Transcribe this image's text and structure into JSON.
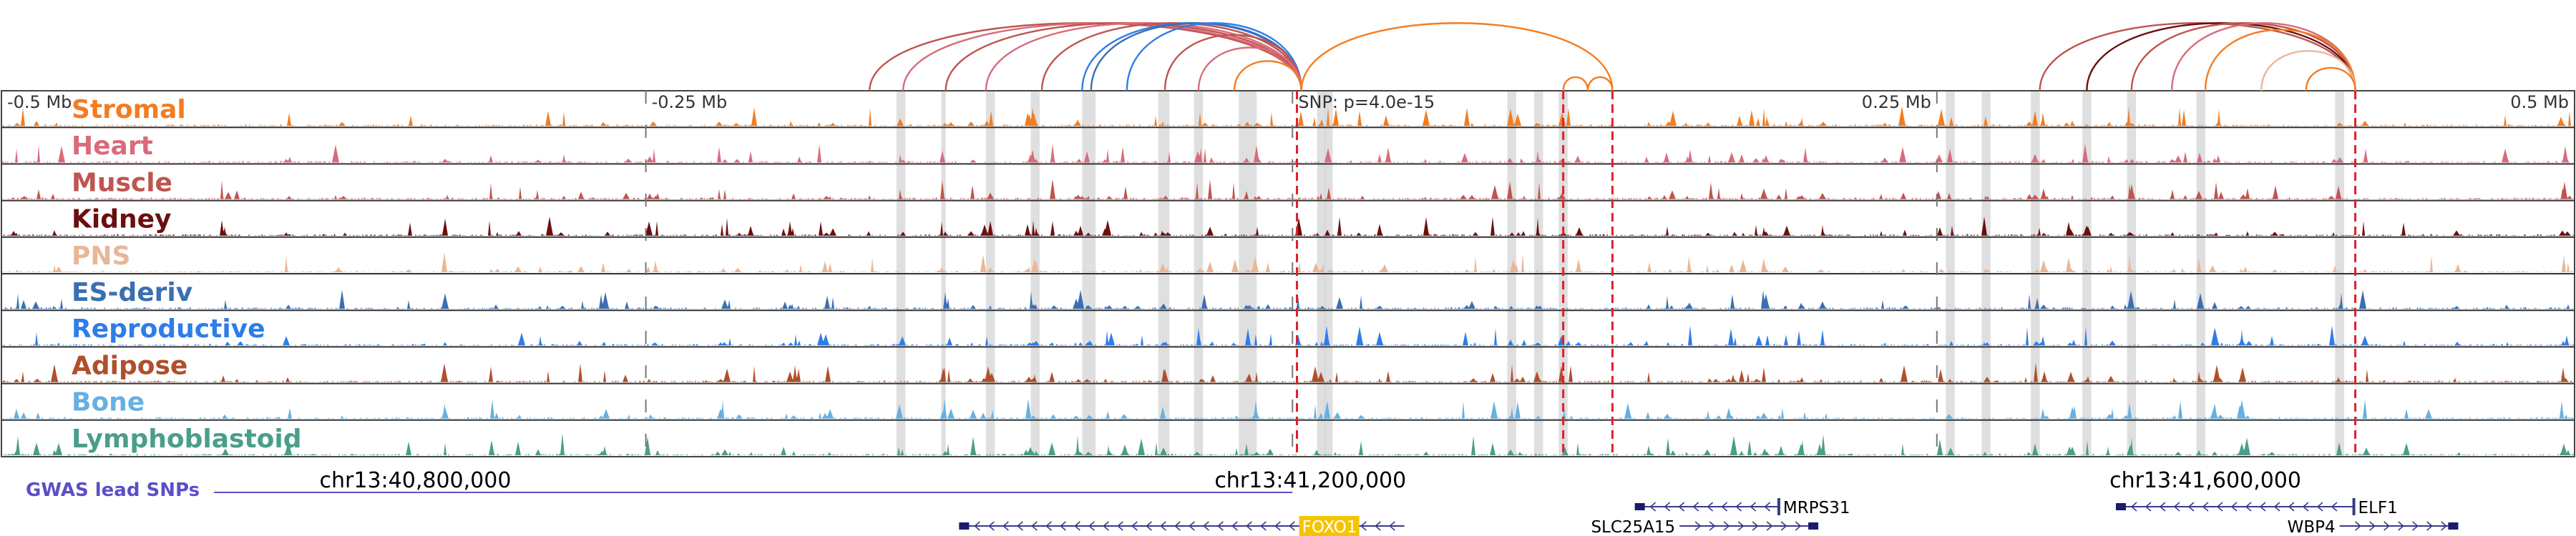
{
  "chart_data": {
    "type": "area",
    "title": "",
    "region": {
      "chrom": "chr13",
      "start": 40615000,
      "end": 41765000,
      "x_ticks": [
        {
          "pos": 40615000,
          "label": "-0.5 Mb"
        },
        {
          "pos": 40903000,
          "label": "-0.25 Mb"
        },
        {
          "pos": 41192000,
          "label": "SNP: p=4.0e-15"
        },
        {
          "pos": 41480000,
          "label": "0.25 Mb"
        },
        {
          "pos": 41765000,
          "label": "0.5 Mb"
        }
      ],
      "coord_labels": [
        {
          "pos": 40800000,
          "label": "chr13:40,800,000"
        },
        {
          "pos": 41200000,
          "label": "chr13:41,200,000"
        },
        {
          "pos": 41600000,
          "label": "chr13:41,600,000"
        }
      ]
    },
    "lead_snp": {
      "pos": 41192000,
      "label": "SNP: p=4.0e-15"
    },
    "tracks": [
      {
        "name": "Stromal",
        "color": "#f47c20"
      },
      {
        "name": "Heart",
        "color": "#d96b7b"
      },
      {
        "name": "Muscle",
        "color": "#c0544f"
      },
      {
        "name": "Kidney",
        "color": "#6a0f0f"
      },
      {
        "name": "PNS",
        "color": "#e8b797"
      },
      {
        "name": "ES-deriv",
        "color": "#3b6fb0"
      },
      {
        "name": "Reproductive",
        "color": "#2e7de9"
      },
      {
        "name": "Adipose",
        "color": "#b04f2c"
      },
      {
        "name": "Bone",
        "color": "#66b0e2"
      },
      {
        "name": "Lymphoblastoid",
        "color": "#4a9e8a"
      }
    ],
    "highlight_regions": [
      [
        41015000,
        41019000
      ],
      [
        41035000,
        41037000
      ],
      [
        41055000,
        41059000
      ],
      [
        41075000,
        41079000
      ],
      [
        41098000,
        41104000
      ],
      [
        41132000,
        41137000
      ],
      [
        41148000,
        41152000
      ],
      [
        41168000,
        41176000
      ],
      [
        41203000,
        41207000
      ],
      [
        41206000,
        41210000
      ],
      [
        41288000,
        41292000
      ],
      [
        41300000,
        41304000
      ],
      [
        41311000,
        41315000
      ],
      [
        41484000,
        41488000
      ],
      [
        41500000,
        41504000
      ],
      [
        41522000,
        41526000
      ],
      [
        41545000,
        41549000
      ],
      [
        41565000,
        41569000
      ],
      [
        41596000,
        41600000
      ],
      [
        41658000,
        41662000
      ]
    ],
    "dashed_markers": [
      41194000,
      41313000,
      41335000,
      41667000
    ],
    "loops": [
      {
        "a": 41003000,
        "b": 41196000,
        "color": "#c0544f"
      },
      {
        "a": 41018000,
        "b": 41196000,
        "color": "#d96b7b"
      },
      {
        "a": 41037000,
        "b": 41196000,
        "color": "#c0544f"
      },
      {
        "a": 41055000,
        "b": 41196000,
        "color": "#d96b7b"
      },
      {
        "a": 41080000,
        "b": 41196000,
        "color": "#c0544f"
      },
      {
        "a": 41098000,
        "b": 41196000,
        "color": "#2e7de9"
      },
      {
        "a": 41102000,
        "b": 41196000,
        "color": "#3b6fb0"
      },
      {
        "a": 41118000,
        "b": 41196000,
        "color": "#2e7de9"
      },
      {
        "a": 41135000,
        "b": 41196000,
        "color": "#c0544f"
      },
      {
        "a": 41150000,
        "b": 41196000,
        "color": "#d96b7b"
      },
      {
        "a": 41166000,
        "b": 41196000,
        "color": "#f47c20"
      },
      {
        "a": 41196000,
        "b": 41335000,
        "color": "#f47c20"
      },
      {
        "a": 41313000,
        "b": 41324000,
        "color": "#f47c20"
      },
      {
        "a": 41324000,
        "b": 41335000,
        "color": "#f47c20"
      },
      {
        "a": 41526000,
        "b": 41667000,
        "color": "#c0544f"
      },
      {
        "a": 41547000,
        "b": 41667000,
        "color": "#6a0f0f"
      },
      {
        "a": 41567000,
        "b": 41667000,
        "color": "#c0544f"
      },
      {
        "a": 41585000,
        "b": 41667000,
        "color": "#d96b7b"
      },
      {
        "a": 41600000,
        "b": 41667000,
        "color": "#f47c20"
      },
      {
        "a": 41625000,
        "b": 41667000,
        "color": "#e8b797"
      },
      {
        "a": 41645000,
        "b": 41667000,
        "color": "#f47c20"
      }
    ],
    "gwas": {
      "label": "GWAS lead SNPs",
      "start": 40710000,
      "end": 41192000,
      "color": "#5b4fc8"
    },
    "genes": [
      {
        "name": "FOXO1",
        "start": 41043000,
        "end": 41242000,
        "strand": "-",
        "row": 1,
        "highlight": true
      },
      {
        "name": "MRPS31",
        "start": 41345000,
        "end": 41410000,
        "strand": "-",
        "row": 0,
        "highlight": false
      },
      {
        "name": "SLC25A15",
        "start": 41365000,
        "end": 41427000,
        "strand": "+",
        "row": 1,
        "highlight": false
      },
      {
        "name": "ELF1",
        "start": 41560000,
        "end": 41667000,
        "strand": "-",
        "row": 0,
        "highlight": false
      },
      {
        "name": "WBP4",
        "start": 41660000,
        "end": 41713000,
        "strand": "+",
        "row": 1,
        "highlight": false
      }
    ]
  },
  "colors": {
    "gene_box": "#1a1a6e",
    "gene_label_highlight_bg": "#f5c400",
    "highlight_band": "#d9d9d9",
    "dashed_marker": "#e0202a"
  }
}
